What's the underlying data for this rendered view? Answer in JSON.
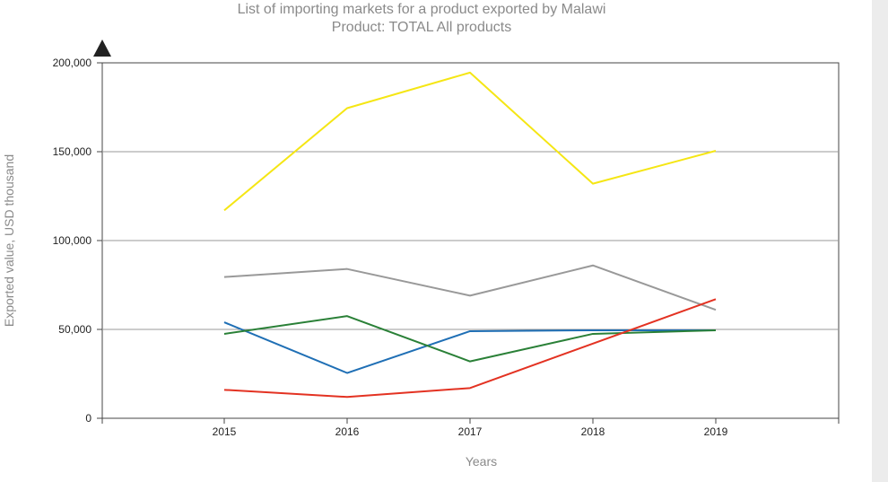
{
  "chart_data": {
    "type": "line",
    "title": "List of importing markets for a product exported by Malawi",
    "subtitle": "Product: TOTAL All products",
    "xlabel": "Years",
    "ylabel": "Exported value, USD thousand",
    "x": [
      2015,
      2016,
      2017,
      2018,
      2019
    ],
    "ylim": [
      0,
      200000
    ],
    "yticks": [
      0,
      50000,
      100000,
      150000,
      200000
    ],
    "ytick_labels": [
      "0",
      "50,000",
      "100,000",
      "150,000",
      "200,000"
    ],
    "grid": true,
    "series": [
      {
        "color": "#f5e614",
        "values": [
          117000,
          174500,
          194500,
          132000,
          150500
        ]
      },
      {
        "color": "#999999",
        "values": [
          79500,
          84000,
          69000,
          86000,
          61000
        ]
      },
      {
        "color": "#1f6fb5",
        "values": [
          54000,
          25500,
          49000,
          49500,
          49500
        ]
      },
      {
        "color": "#2a8037",
        "values": [
          47500,
          57500,
          32000,
          47500,
          49500
        ]
      },
      {
        "color": "#e33222",
        "values": [
          16000,
          12000,
          17000,
          42000,
          67000
        ]
      }
    ]
  }
}
